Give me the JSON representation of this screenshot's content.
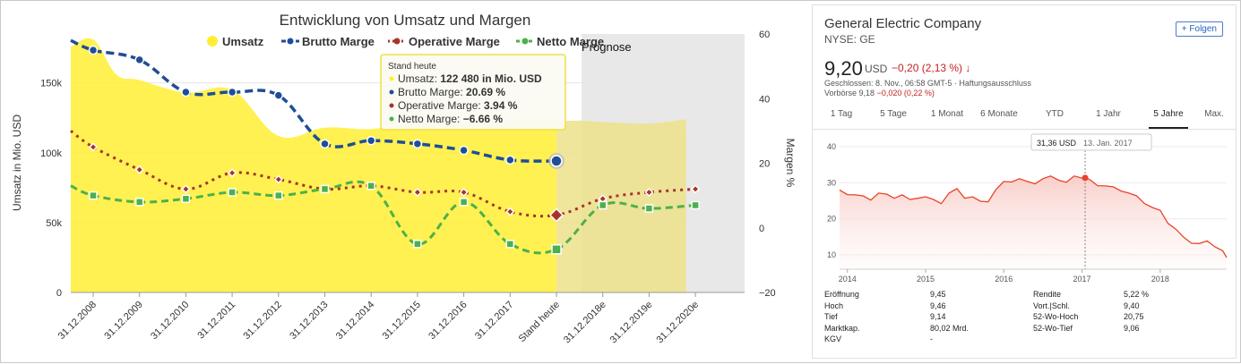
{
  "left": {
    "chart_data": {
      "type": "area+line",
      "title": "Entwicklung von Umsatz und Margen",
      "ylabel": "Umsatz in Mio. USD",
      "y2label": "Margen %",
      "forecast_label": "Prognose",
      "categories": [
        "31.12.2008",
        "31.12.2009",
        "31.12.2010",
        "31.12.2011",
        "31.12.2012",
        "31.12.2013",
        "31.12.2014",
        "31.12.2015",
        "31.12.2016",
        "31.12.2017",
        "Stand heute",
        "31.12.2018e",
        "31.12.2019e",
        "31.12.2020e"
      ],
      "ylim": [
        0,
        185000
      ],
      "y2lim": [
        -20,
        60
      ],
      "yticks": [
        {
          "v": 0,
          "l": "0"
        },
        {
          "v": 50000,
          "l": "50k"
        },
        {
          "v": 100000,
          "l": "100k"
        },
        {
          "v": 150000,
          "l": "150k"
        }
      ],
      "y2ticks": [
        -20,
        0,
        20,
        40,
        60
      ],
      "series": [
        {
          "name": "Umsatz",
          "axis": "left",
          "color": "#ffee33",
          "x": [
            -0.5,
            0,
            0.5,
            1,
            2,
            3,
            4,
            5,
            6,
            7,
            8,
            9,
            10,
            10.5,
            11,
            12,
            12.8
          ],
          "values": [
            176000,
            181000,
            156000,
            152000,
            143000,
            145000,
            112000,
            118000,
            117000,
            122000,
            122000,
            122000,
            122480,
            123000,
            122000,
            121000,
            124000
          ]
        },
        {
          "name": "Brutto Marge",
          "axis": "right",
          "color": "#1f4e96",
          "x": [
            -0.5,
            0,
            1,
            2,
            3,
            4,
            5,
            6,
            7,
            8,
            9,
            10
          ],
          "values": [
            58,
            55,
            52,
            42,
            42,
            41,
            26,
            27,
            26,
            24,
            21,
            20.69
          ]
        },
        {
          "name": "Operative Marge",
          "axis": "right",
          "color": "#a8332b",
          "x": [
            -0.5,
            0,
            1,
            2,
            3,
            4,
            5,
            6,
            7,
            8,
            9,
            10,
            11,
            12,
            13
          ],
          "values": [
            30,
            25,
            18,
            12,
            17,
            15,
            12,
            13,
            11,
            11,
            5,
            3.94,
            9,
            11,
            12
          ]
        },
        {
          "name": "Netto Marge",
          "axis": "right",
          "color": "#4cb04c",
          "x": [
            -0.5,
            0,
            1,
            2,
            3,
            4,
            5,
            6,
            7,
            8,
            9,
            10,
            11,
            12,
            13
          ],
          "values": [
            13,
            10,
            8,
            9,
            11,
            10,
            12,
            13,
            -5,
            8,
            -5,
            -6.66,
            7,
            6,
            7
          ]
        }
      ],
      "tooltip": {
        "header": "Stand heute",
        "rows": [
          {
            "label": "Umsatz:",
            "value": "122 480 in Mio. USD",
            "color": "#ffee33"
          },
          {
            "label": "Brutto Marge:",
            "value": "20.69 %",
            "color": "#1f4e96"
          },
          {
            "label": "Operative Marge:",
            "value": "3.94 %",
            "color": "#a8332b"
          },
          {
            "label": "Netto Marge:",
            "value": "−6.66 %",
            "color": "#4cb04c"
          }
        ]
      }
    }
  },
  "right": {
    "company": "General Electric Company",
    "ticker": "NYSE: GE",
    "follow": "+ Folgen",
    "price": "9,20",
    "currency": "USD",
    "change": "−0,20 (2,13 %) ↓",
    "closed": "Geschlossen: 8. Nov., 06:58 GMT-5 · Haftungsausschluss",
    "prev_label": "Vorbörse 9,18",
    "prev_change": "−0,020 (0,22 %)",
    "tabs": [
      "1 Tag",
      "5 Tage",
      "1 Monat",
      "6 Monate",
      "YTD",
      "1 Jahr",
      "5 Jahre",
      "Max."
    ],
    "active_tab": "5 Jahre",
    "chart_data": {
      "type": "area",
      "color": "#e8432a",
      "yticks": [
        10,
        20,
        30,
        40
      ],
      "ylim": [
        6,
        42
      ],
      "xlim": [
        2013.9,
        2018.85
      ],
      "xticks": [
        2014,
        2015,
        2016,
        2017,
        2018
      ],
      "x": [
        2013.9,
        2014.0,
        2014.1,
        2014.2,
        2014.3,
        2014.4,
        2014.5,
        2014.6,
        2014.7,
        2014.8,
        2014.9,
        2015.0,
        2015.1,
        2015.2,
        2015.3,
        2015.4,
        2015.5,
        2015.6,
        2015.7,
        2015.8,
        2015.9,
        2016.0,
        2016.1,
        2016.2,
        2016.3,
        2016.4,
        2016.5,
        2016.6,
        2016.7,
        2016.8,
        2016.9,
        2017.0,
        2017.04,
        2017.1,
        2017.2,
        2017.3,
        2017.4,
        2017.5,
        2017.6,
        2017.7,
        2017.8,
        2017.9,
        2018.0,
        2018.1,
        2018.2,
        2018.3,
        2018.4,
        2018.5,
        2018.6,
        2018.7,
        2018.8,
        2018.85
      ],
      "y": [
        28,
        27,
        26.5,
        26,
        25.5,
        27,
        26.5,
        26,
        26.5,
        25,
        26,
        26,
        25,
        24.5,
        27,
        28,
        26,
        26,
        24.5,
        25,
        28,
        30,
        30.5,
        31,
        30,
        30,
        31,
        31.5,
        31,
        30,
        31.5,
        31.6,
        31.36,
        30.5,
        29.5,
        29,
        28.5,
        28,
        27,
        26,
        24.5,
        23,
        22,
        19,
        17,
        14.5,
        13.5,
        13,
        13.5,
        12.5,
        11,
        9.2
      ],
      "marker": {
        "x": 2017.04,
        "y": 31.36,
        "price": "31,36 USD",
        "date": "13. Jan. 2017"
      }
    },
    "stats_left": [
      {
        "label": "Eröffnung",
        "value": "9,45"
      },
      {
        "label": "Hoch",
        "value": "9,46"
      },
      {
        "label": "Tief",
        "value": "9,14"
      },
      {
        "label": "Marktkap.",
        "value": "80,02 Mrd."
      },
      {
        "label": "KGV",
        "value": "-"
      }
    ],
    "stats_right": [
      {
        "label": "Rendite",
        "value": "5,22 %"
      },
      {
        "label": "Vort.|Schl.",
        "value": "9,40"
      },
      {
        "label": "52-Wo-Hoch",
        "value": "20,75"
      },
      {
        "label": "52-Wo-Tief",
        "value": "9,06"
      }
    ]
  }
}
